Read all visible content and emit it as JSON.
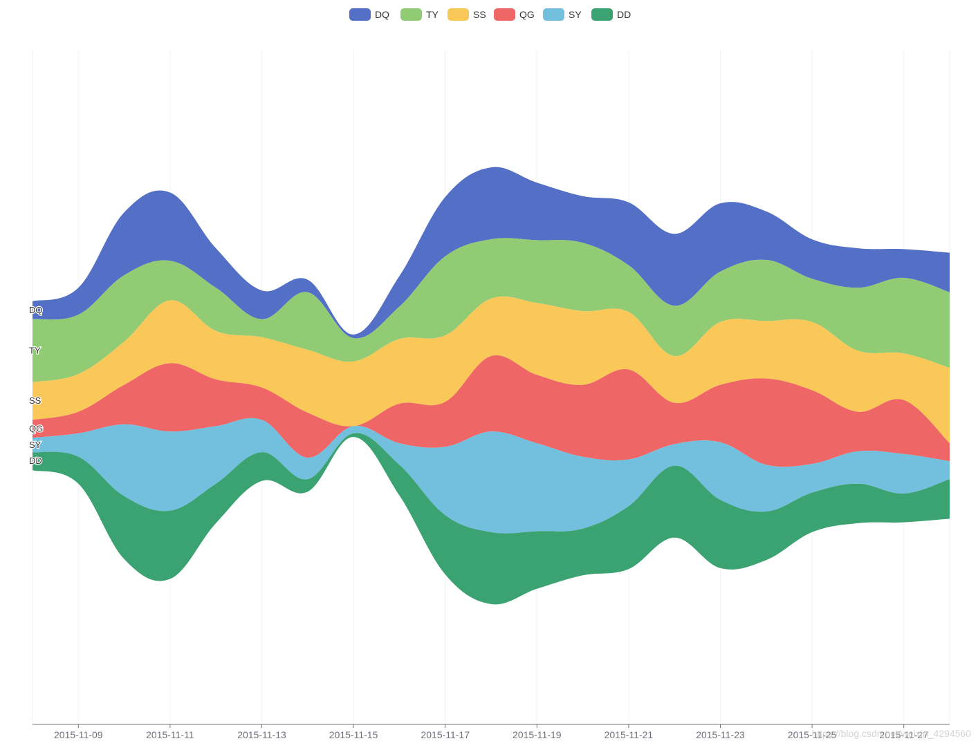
{
  "watermark": "https://blog.csdn.net/weixin_4294560",
  "chart_data": {
    "type": "themeRiver",
    "title": "",
    "xlabel": "",
    "ylabel": "",
    "legend_position": "top-center",
    "dates": [
      "2015-11-08",
      "2015-11-09",
      "2015-11-10",
      "2015-11-11",
      "2015-11-12",
      "2015-11-13",
      "2015-11-14",
      "2015-11-15",
      "2015-11-16",
      "2015-11-17",
      "2015-11-18",
      "2015-11-19",
      "2015-11-20",
      "2015-11-21",
      "2015-11-22",
      "2015-11-23",
      "2015-11-24",
      "2015-11-25",
      "2015-11-26",
      "2015-11-27",
      "2015-11-28"
    ],
    "x_tick_labels": [
      "2015-11-09",
      "2015-11-11",
      "2015-11-13",
      "2015-11-15",
      "2015-11-17",
      "2015-11-19",
      "2015-11-21",
      "2015-11-23",
      "2015-11-25",
      "2015-11-27"
    ],
    "series": [
      {
        "name": "DQ",
        "color": "#5470c6",
        "values": [
          10,
          15,
          35,
          38,
          22,
          16,
          7,
          2,
          17,
          33,
          40,
          32,
          26,
          35,
          40,
          38,
          27,
          22,
          22,
          16,
          22
        ]
      },
      {
        "name": "TY",
        "color": "#91cc75",
        "values": [
          35,
          33,
          37,
          22,
          24,
          10,
          32,
          13,
          18,
          44,
          33,
          35,
          38,
          26,
          28,
          28,
          34,
          24,
          35,
          42,
          42
        ]
      },
      {
        "name": "SS",
        "color": "#fac858",
        "values": [
          21,
          21,
          24,
          35,
          27,
          28,
          35,
          36,
          36,
          37,
          32,
          40,
          41,
          32,
          26,
          35,
          32,
          38,
          34,
          26,
          42
        ]
      },
      {
        "name": "QG",
        "color": "#ee6666",
        "values": [
          10,
          12,
          22,
          38,
          26,
          18,
          25,
          0,
          22,
          25,
          42,
          38,
          40,
          50,
          23,
          32,
          48,
          41,
          22,
          30,
          10
        ]
      },
      {
        "name": "SY",
        "color": "#73c0de",
        "values": [
          8,
          13,
          40,
          44,
          32,
          18,
          12,
          4,
          12,
          38,
          56,
          49,
          40,
          26,
          12,
          32,
          26,
          16,
          18,
          22,
          10
        ]
      },
      {
        "name": "DD",
        "color": "#3ba272",
        "values": [
          10,
          15,
          35,
          38,
          22,
          16,
          7,
          2,
          17,
          33,
          40,
          32,
          26,
          35,
          40,
          38,
          27,
          22,
          22,
          16,
          22
        ]
      }
    ]
  }
}
